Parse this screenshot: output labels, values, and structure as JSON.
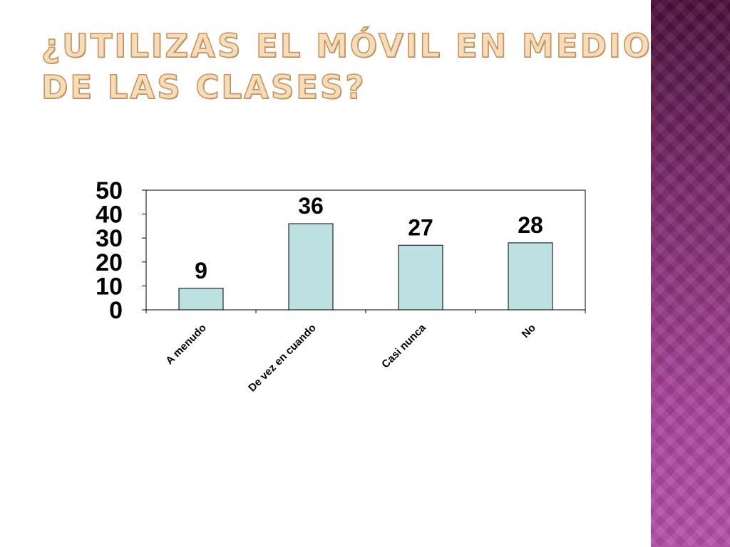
{
  "slide": {
    "title": "¿Utilizas el móvil en medio de las clases?"
  },
  "colors": {
    "bar_fill": "#bde0e3",
    "bar_stroke": "#000000",
    "title_fill": "#f6dcb8",
    "title_outline": "#c89560",
    "side_panel": "#7c2a6c"
  },
  "chart_data": {
    "type": "bar",
    "title": "",
    "xlabel": "",
    "ylabel": "",
    "categories": [
      "A menudo",
      "De vez en cuando",
      "Casi nunca",
      "No"
    ],
    "values": [
      9,
      36,
      27,
      28
    ],
    "data_labels": [
      "9",
      "36",
      "27",
      "28"
    ],
    "ylim": [
      0,
      50
    ],
    "yticks": [
      0,
      10,
      20,
      30,
      40,
      50
    ],
    "ytick_labels": [
      "0",
      "10",
      "20",
      "30",
      "40",
      "50"
    ],
    "grid": false,
    "legend": "none"
  }
}
